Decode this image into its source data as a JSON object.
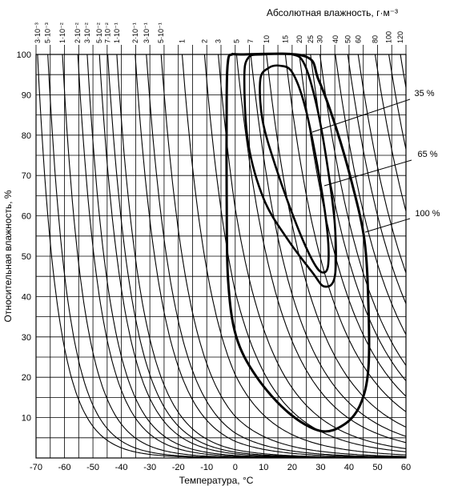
{
  "chart_data": {
    "type": "contour",
    "title": "Абсолютная влажность, г·м⁻³",
    "x_label": "Температура, °C",
    "y_label": "Относительная влажность, %",
    "xlim": [
      -70,
      60
    ],
    "ylim": [
      0,
      100
    ],
    "xticks": [
      -70,
      -60,
      -50,
      -40,
      -30,
      -20,
      -10,
      0,
      10,
      20,
      30,
      40,
      50,
      60
    ],
    "yticks": [
      10,
      20,
      30,
      40,
      50,
      60,
      70,
      80,
      90,
      100
    ],
    "minor_xticks": [
      -65,
      -55,
      -45,
      -35,
      -25,
      -15,
      -5,
      5,
      15,
      25,
      35,
      45,
      55
    ],
    "minor_yticks": [
      5,
      15,
      25,
      35,
      45,
      55,
      65,
      75,
      85,
      95
    ],
    "grid": true,
    "absolute_humidity": [
      {
        "value": 0.003,
        "label": "3·10⁻³"
      },
      {
        "value": 0.005,
        "label": "5·10⁻³"
      },
      {
        "value": 0.01,
        "label": "1·10⁻²"
      },
      {
        "value": 0.02,
        "label": "2·10⁻²"
      },
      {
        "value": 0.03,
        "label": "3·10⁻²"
      },
      {
        "value": 0.05,
        "label": "5·10⁻²"
      },
      {
        "value": 0.07,
        "label": "7·10⁻²"
      },
      {
        "value": 0.1,
        "label": "1·10⁻¹"
      },
      {
        "value": 0.2,
        "label": "2·10⁻¹"
      },
      {
        "value": 0.3,
        "label": "3·10⁻¹"
      },
      {
        "value": 0.5,
        "label": "5·10⁻¹"
      },
      1,
      2,
      3,
      5,
      7,
      10,
      15,
      20,
      25,
      30,
      40,
      50,
      60,
      80,
      100,
      120
    ],
    "series": [
      {
        "name": "35 %",
        "color": "#000000",
        "x": [
          8.8,
          11.6,
          15.8,
          20,
          24.3,
          28.5,
          32.1,
          32.7,
          30.5,
          27.1,
          21.5,
          14.4,
          9.6
        ],
        "values": [
          93.7,
          96.6,
          97.2,
          95.6,
          87.7,
          73.8,
          57.9,
          48,
          46,
          49,
          57.9,
          71.8,
          83.7
        ]
      },
      {
        "name": "65 %",
        "color": "#000000",
        "x": [
          4.6,
          3.2,
          4.6,
          10.2,
          18.6,
          27.1,
          31.3,
          35,
          35,
          32.1,
          28.5,
          24.3,
          20,
          10.2
        ],
        "values": [
          99.2,
          93.7,
          77.8,
          63.9,
          54,
          46,
          42.5,
          45,
          57.9,
          73.8,
          87.7,
          97.6,
          100,
          100
        ]
      },
      {
        "name": "100 %",
        "color": "#000000",
        "x": [
          -1.1,
          -2.5,
          -3,
          -3,
          -2.5,
          0.3,
          7.4,
          18.6,
          29.9,
          38.3,
          44,
          46.8,
          46.8,
          45.4,
          41.1,
          35.5,
          29.3,
          24.3,
          1.8
        ],
        "values": [
          100,
          98.6,
          89.7,
          63.9,
          44,
          30.2,
          20.2,
          11.3,
          6.7,
          8.3,
          13.3,
          22.2,
          38.1,
          54,
          67.9,
          81.7,
          93.7,
          99.6,
          100
        ]
      }
    ]
  }
}
